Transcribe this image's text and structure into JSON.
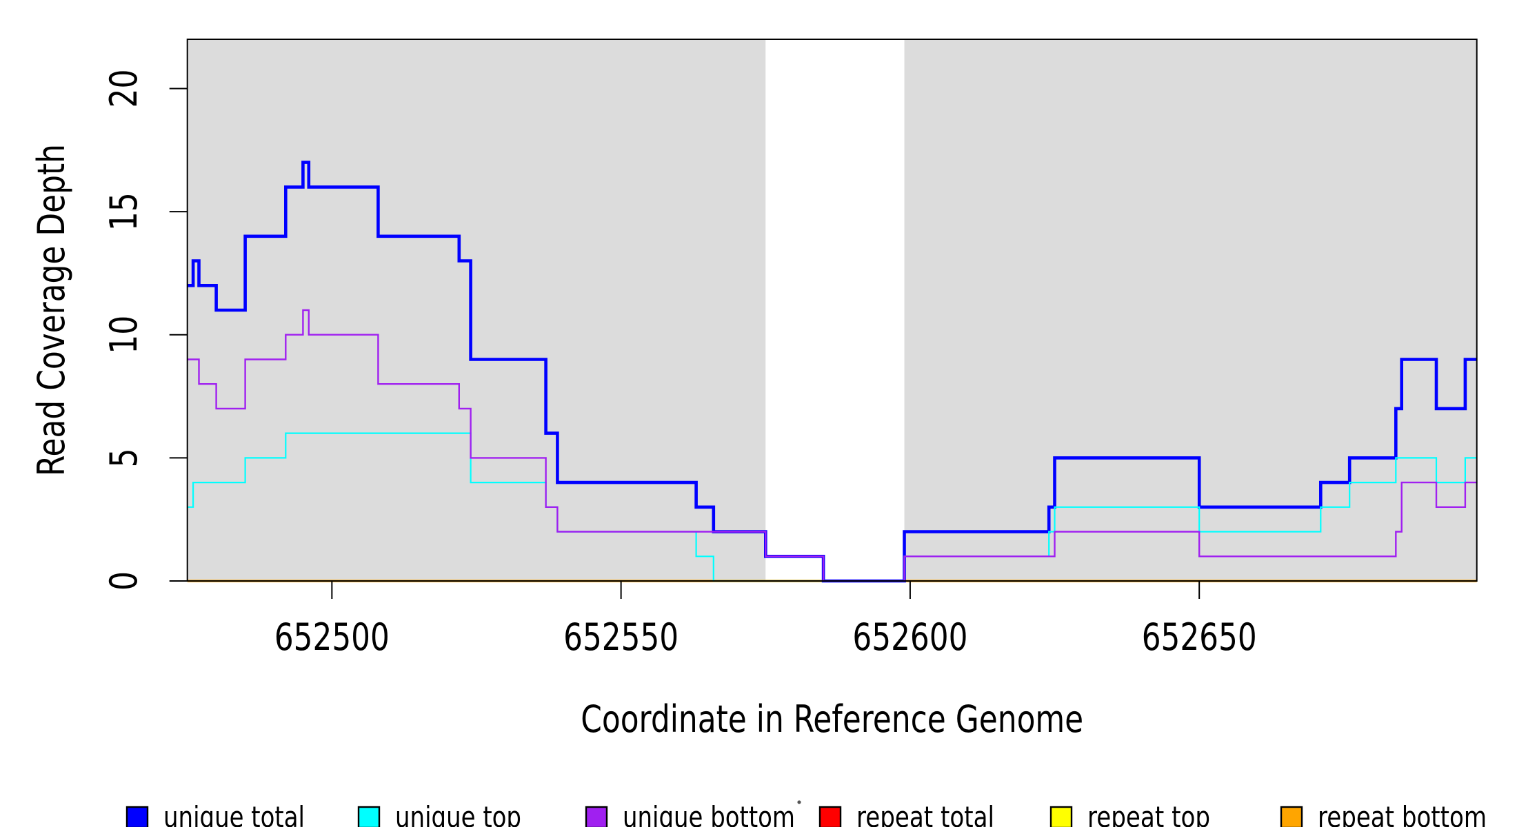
{
  "chart_data": {
    "type": "line",
    "subtype": "step-coverage",
    "title": "",
    "xlabel": "Coordinate in Reference Genome",
    "ylabel": "Read Coverage Depth",
    "xlim": [
      652475,
      652698
    ],
    "ylim": [
      0,
      22
    ],
    "x_ticks": [
      652500,
      652550,
      652600,
      652650
    ],
    "x_tick_labels": [
      "652500",
      "652550",
      "652600",
      "652650"
    ],
    "y_ticks": [
      0,
      5,
      10,
      15,
      20
    ],
    "y_tick_labels": [
      "0",
      "5",
      "10",
      "15",
      "20"
    ],
    "grid": false,
    "plot_background": "#FFFFFF",
    "shaded_regions": [
      {
        "x0": 652475,
        "x1": 652575,
        "color": "#DCDCDC"
      },
      {
        "x0": 652599,
        "x1": 652698,
        "color": "#DCDCDC"
      }
    ],
    "series": [
      {
        "name": "repeat total",
        "color": "#FF0000",
        "width": 2.2,
        "steps": [
          [
            652475,
            0
          ],
          [
            652698,
            0
          ]
        ]
      },
      {
        "name": "repeat top",
        "color": "#FFFF00",
        "width": 2.2,
        "steps": [
          [
            652475,
            0
          ],
          [
            652698,
            0
          ]
        ]
      },
      {
        "name": "repeat bottom",
        "color": "#FFA500",
        "width": 3.4,
        "steps": [
          [
            652475,
            0
          ],
          [
            652698,
            0
          ]
        ]
      },
      {
        "name": "unique total",
        "color": "#0000FF",
        "width": 4.6,
        "steps": [
          [
            652475,
            12
          ],
          [
            652476,
            13
          ],
          [
            652477,
            12
          ],
          [
            652480,
            11
          ],
          [
            652485,
            14
          ],
          [
            652492,
            16
          ],
          [
            652495,
            17
          ],
          [
            652496,
            16
          ],
          [
            652508,
            14
          ],
          [
            652522,
            13
          ],
          [
            652524,
            9
          ],
          [
            652537,
            6
          ],
          [
            652539,
            4
          ],
          [
            652563,
            3
          ],
          [
            652566,
            2
          ],
          [
            652575,
            1
          ],
          [
            652585,
            0
          ],
          [
            652599,
            2
          ],
          [
            652624,
            3
          ],
          [
            652625,
            5
          ],
          [
            652650,
            3
          ],
          [
            652671,
            4
          ],
          [
            652676,
            5
          ],
          [
            652684,
            7
          ],
          [
            652685,
            9
          ],
          [
            652691,
            7
          ],
          [
            652696,
            9
          ],
          [
            652698,
            9
          ]
        ]
      },
      {
        "name": "unique top",
        "color": "#00FFFF",
        "width": 2.2,
        "steps": [
          [
            652475,
            3
          ],
          [
            652476,
            4
          ],
          [
            652485,
            5
          ],
          [
            652492,
            6
          ],
          [
            652524,
            4
          ],
          [
            652537,
            3
          ],
          [
            652539,
            2
          ],
          [
            652563,
            1
          ],
          [
            652566,
            0
          ],
          [
            652599,
            1
          ],
          [
            652624,
            2
          ],
          [
            652625,
            3
          ],
          [
            652650,
            2
          ],
          [
            652671,
            3
          ],
          [
            652676,
            4
          ],
          [
            652684,
            5
          ],
          [
            652691,
            4
          ],
          [
            652696,
            5
          ],
          [
            652698,
            5
          ]
        ]
      },
      {
        "name": "unique bottom",
        "color": "#A020F0",
        "width": 2.4,
        "steps": [
          [
            652475,
            9
          ],
          [
            652477,
            8
          ],
          [
            652480,
            7
          ],
          [
            652485,
            9
          ],
          [
            652492,
            10
          ],
          [
            652495,
            11
          ],
          [
            652496,
            10
          ],
          [
            652508,
            8
          ],
          [
            652522,
            7
          ],
          [
            652524,
            5
          ],
          [
            652537,
            3
          ],
          [
            652539,
            2
          ],
          [
            652575,
            1
          ],
          [
            652585,
            0
          ],
          [
            652599,
            1
          ],
          [
            652625,
            2
          ],
          [
            652650,
            1
          ],
          [
            652684,
            2
          ],
          [
            652685,
            4
          ],
          [
            652691,
            3
          ],
          [
            652696,
            4
          ],
          [
            652698,
            4
          ]
        ]
      }
    ],
    "legend_position": "bottom",
    "legend": [
      {
        "label": "unique total",
        "color": "#0000FF"
      },
      {
        "label": "unique top",
        "color": "#00FFFF"
      },
      {
        "label": "unique bottom",
        "color": "#A020F0"
      },
      {
        "label": "repeat total",
        "color": "#FF0000"
      },
      {
        "label": "repeat top",
        "color": "#FFFF00"
      },
      {
        "label": "repeat bottom",
        "color": "#FFA500"
      }
    ],
    "annotations": {
      "stray_mark": "."
    }
  }
}
